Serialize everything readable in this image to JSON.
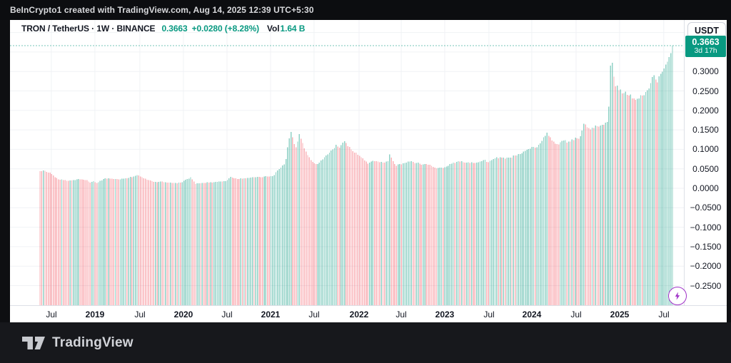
{
  "topbar": {
    "text": "BeInCrypto1 created with TradingView.com, Aug 14, 2025 12:39 UTC+5:30"
  },
  "legend": {
    "symbol_line": "TRON / TetherUS · 1W · BINANCE",
    "price": "0.3663",
    "change": "+0.0280 (+8.28%)",
    "volume_label": "Vol",
    "volume_value": "1.64 B"
  },
  "price_axis": {
    "currency_button": "USDT",
    "badge_price": "0.3663",
    "badge_countdown": "3d 17h",
    "ticks": [
      {
        "label": "0.3000",
        "value": 0.3
      },
      {
        "label": "0.2500",
        "value": 0.25
      },
      {
        "label": "0.2000",
        "value": 0.2
      },
      {
        "label": "0.1500",
        "value": 0.15
      },
      {
        "label": "0.1000",
        "value": 0.1
      },
      {
        "label": "0.0500",
        "value": 0.05
      },
      {
        "label": "0.0000",
        "value": 0.0
      },
      {
        "label": "−0.0500",
        "value": -0.05
      },
      {
        "label": "−0.1000",
        "value": -0.1
      },
      {
        "label": "−0.1500",
        "value": -0.15
      },
      {
        "label": "−0.2000",
        "value": -0.2
      },
      {
        "label": "−0.2500",
        "value": -0.25
      }
    ],
    "extra_grid_values": [
      0.35,
      0.4
    ]
  },
  "time_axis": {
    "ticks": [
      {
        "label": "Jul",
        "week_index": 6.8,
        "major": false
      },
      {
        "label": "2019",
        "week_index": 32.8,
        "major": true
      },
      {
        "label": "Jul",
        "week_index": 59.7,
        "major": false
      },
      {
        "label": "2020",
        "week_index": 85.7,
        "major": true
      },
      {
        "label": "Jul",
        "week_index": 111.8,
        "major": false
      },
      {
        "label": "2021",
        "week_index": 137.8,
        "major": true
      },
      {
        "label": "Jul",
        "week_index": 163.8,
        "major": false
      },
      {
        "label": "2022",
        "week_index": 190.7,
        "major": true
      },
      {
        "label": "Jul",
        "week_index": 215.9,
        "major": false
      },
      {
        "label": "2023",
        "week_index": 241.9,
        "major": true
      },
      {
        "label": "Jul",
        "week_index": 268.3,
        "major": false
      },
      {
        "label": "2024",
        "week_index": 293.9,
        "major": true
      },
      {
        "label": "Jul",
        "week_index": 320.4,
        "major": false
      },
      {
        "label": "2025",
        "week_index": 346.4,
        "major": true
      },
      {
        "label": "Jul",
        "week_index": 372.8,
        "major": false
      }
    ]
  },
  "footer": {
    "brand": "TradingView"
  },
  "colors": {
    "accent_teal": "#089981",
    "up_bar": "rgba(8,153,129,0.45)",
    "down_bar": "rgba(242,54,69,0.38)",
    "badge_bg": "#089981",
    "boost_purple": "#a032c8",
    "grid": "#f0f2f5",
    "axis_text": "#131722"
  },
  "chart_data": {
    "type": "bar",
    "title": "TRON / TetherUS · 1W · BINANCE",
    "ylabel": "Price (USDT)",
    "interval": "1W",
    "x_range": [
      "2018-05",
      "2025-08"
    ],
    "ylim_visible": [
      -0.3,
      0.43
    ],
    "column_baseline": -0.3,
    "last_close": 0.3663,
    "countdown": "3d 17h",
    "n_weeks": 379,
    "weekly_close_anchors": [
      [
        0,
        0.044
      ],
      [
        2,
        0.046
      ],
      [
        4,
        0.042
      ],
      [
        7,
        0.037
      ],
      [
        9,
        0.028
      ],
      [
        11,
        0.023
      ],
      [
        14,
        0.021
      ],
      [
        17,
        0.019
      ],
      [
        20,
        0.021
      ],
      [
        23,
        0.024
      ],
      [
        26,
        0.022
      ],
      [
        28,
        0.021
      ],
      [
        30,
        0.015
      ],
      [
        32,
        0.018
      ],
      [
        34,
        0.014
      ],
      [
        36,
        0.019
      ],
      [
        38,
        0.024
      ],
      [
        41,
        0.026
      ],
      [
        44,
        0.024
      ],
      [
        47,
        0.023
      ],
      [
        50,
        0.025
      ],
      [
        53,
        0.027
      ],
      [
        56,
        0.03
      ],
      [
        58,
        0.034
      ],
      [
        60,
        0.03
      ],
      [
        62,
        0.026
      ],
      [
        64,
        0.022
      ],
      [
        67,
        0.018
      ],
      [
        70,
        0.016
      ],
      [
        73,
        0.017
      ],
      [
        76,
        0.015
      ],
      [
        79,
        0.014
      ],
      [
        82,
        0.013
      ],
      [
        85,
        0.016
      ],
      [
        88,
        0.024
      ],
      [
        90,
        0.028
      ],
      [
        92,
        0.017
      ],
      [
        93,
        0.011
      ],
      [
        95,
        0.013
      ],
      [
        98,
        0.014
      ],
      [
        101,
        0.015
      ],
      [
        104,
        0.016
      ],
      [
        107,
        0.017
      ],
      [
        110,
        0.018
      ],
      [
        112,
        0.021
      ],
      [
        114,
        0.029
      ],
      [
        116,
        0.026
      ],
      [
        119,
        0.024
      ],
      [
        122,
        0.026
      ],
      [
        125,
        0.027
      ],
      [
        128,
        0.028
      ],
      [
        131,
        0.029
      ],
      [
        133,
        0.028
      ],
      [
        135,
        0.031
      ],
      [
        138,
        0.031
      ],
      [
        140,
        0.034
      ],
      [
        142,
        0.046
      ],
      [
        144,
        0.053
      ],
      [
        146,
        0.061
      ],
      [
        147,
        0.075
      ],
      [
        148,
        0.105
      ],
      [
        149,
        0.128
      ],
      [
        150,
        0.145
      ],
      [
        151,
        0.131
      ],
      [
        152,
        0.114
      ],
      [
        153,
        0.105
      ],
      [
        154,
        0.12
      ],
      [
        155,
        0.139
      ],
      [
        156,
        0.127
      ],
      [
        157,
        0.116
      ],
      [
        158,
        0.103
      ],
      [
        159,
        0.094
      ],
      [
        161,
        0.08
      ],
      [
        163,
        0.068
      ],
      [
        165,
        0.062
      ],
      [
        167,
        0.066
      ],
      [
        169,
        0.074
      ],
      [
        171,
        0.084
      ],
      [
        173,
        0.092
      ],
      [
        175,
        0.1
      ],
      [
        177,
        0.112
      ],
      [
        179,
        0.104
      ],
      [
        181,
        0.117
      ],
      [
        182,
        0.121
      ],
      [
        184,
        0.108
      ],
      [
        186,
        0.1
      ],
      [
        188,
        0.092
      ],
      [
        190,
        0.086
      ],
      [
        192,
        0.08
      ],
      [
        194,
        0.071
      ],
      [
        196,
        0.063
      ],
      [
        198,
        0.069
      ],
      [
        200,
        0.07
      ],
      [
        202,
        0.069
      ],
      [
        204,
        0.068
      ],
      [
        206,
        0.066
      ],
      [
        208,
        0.07
      ],
      [
        209,
        0.087
      ],
      [
        210,
        0.079
      ],
      [
        211,
        0.07
      ],
      [
        213,
        0.058
      ],
      [
        215,
        0.062
      ],
      [
        217,
        0.064
      ],
      [
        219,
        0.066
      ],
      [
        221,
        0.069
      ],
      [
        223,
        0.068
      ],
      [
        225,
        0.065
      ],
      [
        227,
        0.063
      ],
      [
        229,
        0.061
      ],
      [
        231,
        0.062
      ],
      [
        233,
        0.06
      ],
      [
        235,
        0.055
      ],
      [
        237,
        0.051
      ],
      [
        239,
        0.053
      ],
      [
        241,
        0.052
      ],
      [
        243,
        0.056
      ],
      [
        246,
        0.063
      ],
      [
        249,
        0.068
      ],
      [
        252,
        0.07
      ],
      [
        255,
        0.066
      ],
      [
        258,
        0.067
      ],
      [
        261,
        0.066
      ],
      [
        264,
        0.07
      ],
      [
        266,
        0.073
      ],
      [
        268,
        0.067
      ],
      [
        270,
        0.072
      ],
      [
        272,
        0.077
      ],
      [
        275,
        0.08
      ],
      [
        278,
        0.076
      ],
      [
        281,
        0.079
      ],
      [
        284,
        0.084
      ],
      [
        287,
        0.088
      ],
      [
        290,
        0.096
      ],
      [
        292,
        0.101
      ],
      [
        294,
        0.106
      ],
      [
        296,
        0.104
      ],
      [
        298,
        0.112
      ],
      [
        300,
        0.122
      ],
      [
        302,
        0.135
      ],
      [
        303,
        0.143
      ],
      [
        305,
        0.131
      ],
      [
        307,
        0.12
      ],
      [
        309,
        0.114
      ],
      [
        311,
        0.118
      ],
      [
        313,
        0.123
      ],
      [
        315,
        0.117
      ],
      [
        317,
        0.12
      ],
      [
        319,
        0.124
      ],
      [
        321,
        0.128
      ],
      [
        323,
        0.134
      ],
      [
        325,
        0.166
      ],
      [
        327,
        0.157
      ],
      [
        329,
        0.151
      ],
      [
        331,
        0.155
      ],
      [
        333,
        0.159
      ],
      [
        335,
        0.161
      ],
      [
        337,
        0.163
      ],
      [
        339,
        0.17
      ],
      [
        340,
        0.21
      ],
      [
        341,
        0.315
      ],
      [
        342,
        0.322
      ],
      [
        343,
        0.287
      ],
      [
        344,
        0.262
      ],
      [
        346,
        0.252
      ],
      [
        348,
        0.244
      ],
      [
        350,
        0.248
      ],
      [
        352,
        0.238
      ],
      [
        354,
        0.231
      ],
      [
        356,
        0.227
      ],
      [
        358,
        0.231
      ],
      [
        360,
        0.238
      ],
      [
        362,
        0.247
      ],
      [
        363,
        0.252
      ],
      [
        364,
        0.256
      ],
      [
        365,
        0.27
      ],
      [
        366,
        0.286
      ],
      [
        367,
        0.29
      ],
      [
        368,
        0.279
      ],
      [
        369,
        0.272
      ],
      [
        370,
        0.288
      ],
      [
        371,
        0.294
      ],
      [
        372,
        0.299
      ],
      [
        373,
        0.308
      ],
      [
        374,
        0.318
      ],
      [
        375,
        0.325
      ],
      [
        376,
        0.337
      ],
      [
        377,
        0.347
      ],
      [
        378,
        0.3663
      ]
    ]
  }
}
